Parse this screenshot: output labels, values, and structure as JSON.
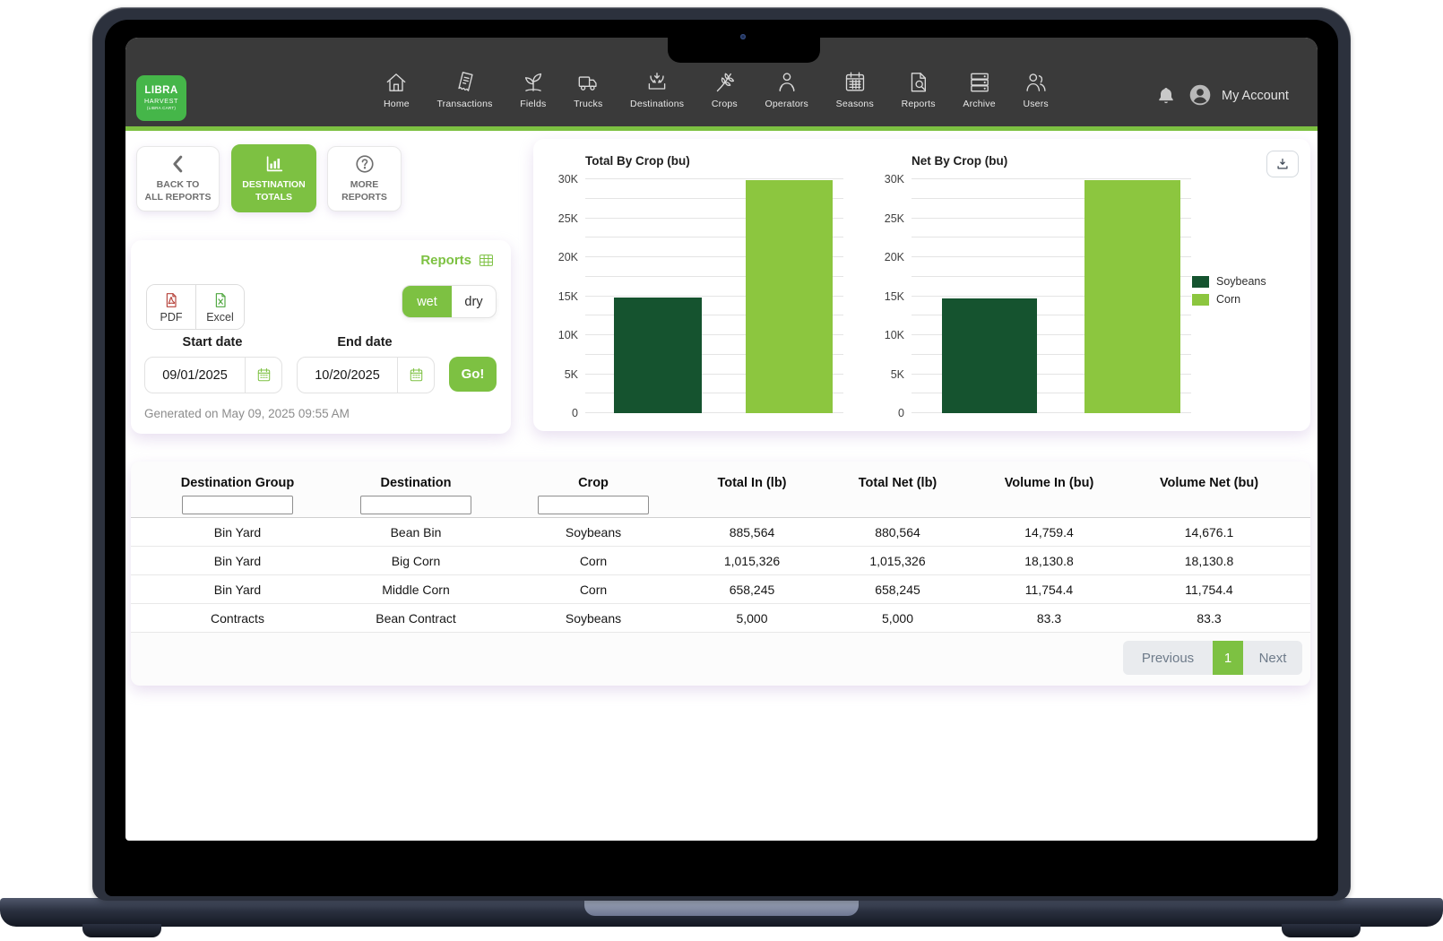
{
  "colors": {
    "accent_green": "#7dc142",
    "logo_green": "#45b649",
    "header_dark": "#3a3a3a",
    "bar_dark_green": "#15532f",
    "bar_light_green": "#8cc63f"
  },
  "header": {
    "logo": {
      "line1": "LIBRA",
      "line2": "HARVEST",
      "line3": "(LIBRA CART)"
    },
    "nav": [
      {
        "label": "Home",
        "icon": "home-icon"
      },
      {
        "label": "Transactions",
        "icon": "transactions-icon"
      },
      {
        "label": "Fields",
        "icon": "fields-icon"
      },
      {
        "label": "Trucks",
        "icon": "trucks-icon"
      },
      {
        "label": "Destinations",
        "icon": "destinations-icon"
      },
      {
        "label": "Crops",
        "icon": "crops-icon"
      },
      {
        "label": "Operators",
        "icon": "operators-icon"
      },
      {
        "label": "Seasons",
        "icon": "seasons-icon"
      },
      {
        "label": "Reports",
        "icon": "reports-icon"
      },
      {
        "label": "Archive",
        "icon": "archive-icon"
      },
      {
        "label": "Users",
        "icon": "users-icon"
      }
    ],
    "account_label": "My Account"
  },
  "toolbar": {
    "back": [
      "BACK TO",
      "ALL REPORTS"
    ],
    "active": [
      "DESTINATION",
      "TOTALS"
    ],
    "more": [
      "MORE",
      "REPORTS"
    ]
  },
  "report_panel": {
    "title": "Reports",
    "pdf_label": "PDF",
    "excel_label": "Excel",
    "wet_label": "wet",
    "dry_label": "dry",
    "start_date_label": "Start date",
    "start_date_value": "09/01/2025",
    "end_date_label": "End date",
    "end_date_value": "10/20/2025",
    "go_label": "Go!",
    "generated_text": "Generated on May 09, 2025 09:55 AM"
  },
  "chart_data": [
    {
      "type": "bar",
      "title": "Total By Crop (bu)",
      "categories": [
        "Soybeans",
        "Corn"
      ],
      "values": [
        14842.7,
        29885.2
      ],
      "colors": [
        "#15532f",
        "#8cc63f"
      ],
      "ylim": [
        0,
        30000
      ],
      "grid_step": 2500,
      "label_step": 5000,
      "yticks": [
        "0",
        "5K",
        "10K",
        "15K",
        "20K",
        "25K",
        "30K"
      ],
      "grid": true,
      "legend_position": "right"
    },
    {
      "type": "bar",
      "title": "Net By Crop (bu)",
      "categories": [
        "Soybeans",
        "Corn"
      ],
      "values": [
        14759.4,
        29885.2
      ],
      "colors": [
        "#15532f",
        "#8cc63f"
      ],
      "ylim": [
        0,
        30000
      ],
      "grid_step": 2500,
      "label_step": 5000,
      "yticks": [
        "0",
        "5K",
        "10K",
        "15K",
        "20K",
        "25K",
        "30K"
      ],
      "grid": true,
      "legend_position": "right"
    }
  ],
  "legend": [
    {
      "label": "Soybeans",
      "color": "#15532f"
    },
    {
      "label": "Corn",
      "color": "#8cc63f"
    }
  ],
  "table": {
    "columns": [
      "Destination Group",
      "Destination",
      "Crop",
      "Total In (lb)",
      "Total Net (lb)",
      "Volume In (bu)",
      "Volume Net (bu)"
    ],
    "filters": [
      true,
      true,
      true,
      false,
      false,
      false,
      false
    ],
    "rows": [
      [
        "Bin Yard",
        "Bean Bin",
        "Soybeans",
        "885,564",
        "880,564",
        "14,759.4",
        "14,676.1"
      ],
      [
        "Bin Yard",
        "Big Corn",
        "Corn",
        "1,015,326",
        "1,015,326",
        "18,130.8",
        "18,130.8"
      ],
      [
        "Bin Yard",
        "Middle Corn",
        "Corn",
        "658,245",
        "658,245",
        "11,754.4",
        "11,754.4"
      ],
      [
        "Contracts",
        "Bean Contract",
        "Soybeans",
        "5,000",
        "5,000",
        "83.3",
        "83.3"
      ]
    ],
    "pagination": {
      "previous": "Previous",
      "page": "1",
      "next": "Next"
    }
  }
}
